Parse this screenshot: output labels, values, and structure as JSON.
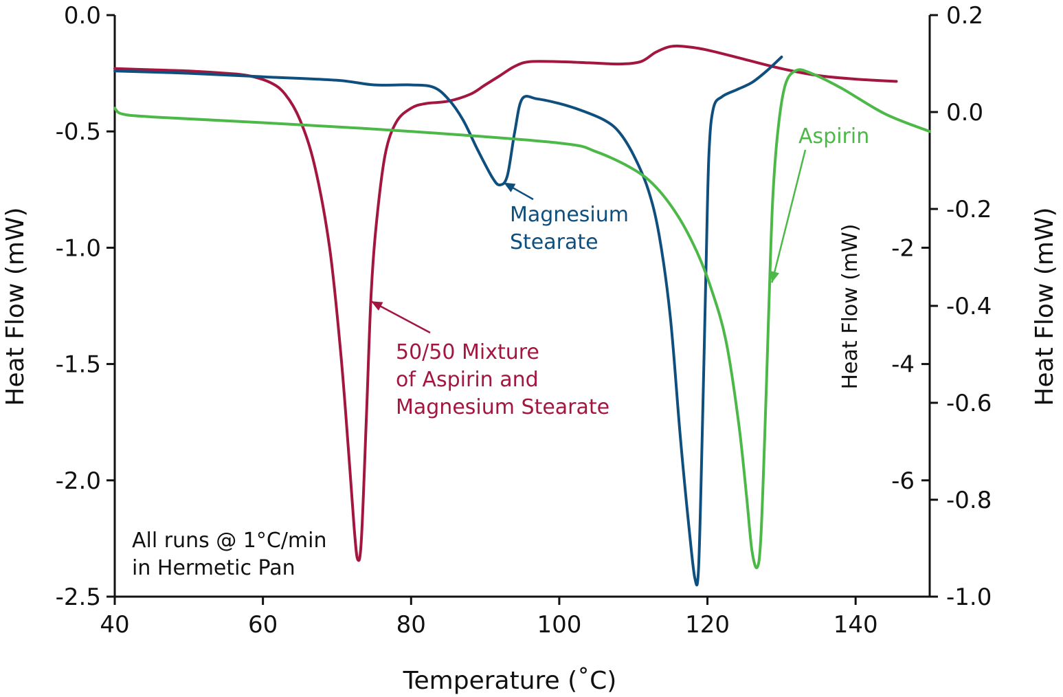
{
  "chart_data": {
    "type": "line",
    "xlabel": "Temperature (˚C)",
    "xlim": [
      40,
      150
    ],
    "xticks": [
      40,
      60,
      80,
      100,
      120,
      140
    ],
    "axes": {
      "left": {
        "label": "Heat Flow (mW)",
        "lim": [
          -2.5,
          0.0
        ],
        "ticks": [
          "0.0",
          "-0.5",
          "-1.0",
          "-1.5",
          "-2.0",
          "-2.5"
        ]
      },
      "inner_right": {
        "label": "Heat Flow (mW)",
        "lim": [
          -8.0,
          2.0
        ],
        "ticks": [
          "-2",
          "-4",
          "-6"
        ]
      },
      "outer_right": {
        "label": "Heat Flow (mW)",
        "lim": [
          -1.0,
          0.2
        ],
        "ticks": [
          "0.2",
          "0.0",
          "-0.2",
          "-0.4",
          "-0.6",
          "-0.8",
          "-1.0"
        ]
      }
    },
    "series": [
      {
        "name": "50/50 Mixture of Aspirin and Magnesium Stearate",
        "axis": "left",
        "color": "#a3163f",
        "points": [
          [
            40,
            -0.23
          ],
          [
            45,
            -0.235
          ],
          [
            50,
            -0.24
          ],
          [
            55,
            -0.25
          ],
          [
            58,
            -0.26
          ],
          [
            61,
            -0.29
          ],
          [
            63,
            -0.34
          ],
          [
            65,
            -0.45
          ],
          [
            67,
            -0.65
          ],
          [
            69,
            -1.0
          ],
          [
            70.5,
            -1.45
          ],
          [
            71.5,
            -1.85
          ],
          [
            72.3,
            -2.2
          ],
          [
            72.8,
            -2.34
          ],
          [
            73.3,
            -2.25
          ],
          [
            74,
            -1.7
          ],
          [
            74.6,
            -1.2
          ],
          [
            75.3,
            -0.9
          ],
          [
            76.5,
            -0.6
          ],
          [
            78,
            -0.46
          ],
          [
            80,
            -0.4
          ],
          [
            82,
            -0.38
          ],
          [
            85,
            -0.37
          ],
          [
            88,
            -0.34
          ],
          [
            90,
            -0.3
          ],
          [
            92,
            -0.26
          ],
          [
            94,
            -0.22
          ],
          [
            96,
            -0.2
          ],
          [
            100,
            -0.2
          ],
          [
            104,
            -0.205
          ],
          [
            108,
            -0.21
          ],
          [
            111,
            -0.2
          ],
          [
            113,
            -0.16
          ],
          [
            115,
            -0.135
          ],
          [
            117,
            -0.135
          ],
          [
            120,
            -0.15
          ],
          [
            125,
            -0.19
          ],
          [
            130,
            -0.23
          ],
          [
            135,
            -0.26
          ],
          [
            140,
            -0.275
          ],
          [
            145.5,
            -0.285
          ]
        ]
      },
      {
        "name": "Magnesium Stearate",
        "axis": "left",
        "color": "#0f4f7e",
        "points": [
          [
            40,
            -0.24
          ],
          [
            50,
            -0.25
          ],
          [
            60,
            -0.265
          ],
          [
            70,
            -0.28
          ],
          [
            75,
            -0.3
          ],
          [
            80,
            -0.3
          ],
          [
            83,
            -0.31
          ],
          [
            85,
            -0.36
          ],
          [
            87,
            -0.45
          ],
          [
            89,
            -0.58
          ],
          [
            91,
            -0.7
          ],
          [
            92,
            -0.73
          ],
          [
            93,
            -0.69
          ],
          [
            94,
            -0.5
          ],
          [
            95,
            -0.36
          ],
          [
            97,
            -0.36
          ],
          [
            100,
            -0.38
          ],
          [
            103,
            -0.41
          ],
          [
            106,
            -0.45
          ],
          [
            108,
            -0.5
          ],
          [
            110,
            -0.6
          ],
          [
            112,
            -0.75
          ],
          [
            113.5,
            -0.95
          ],
          [
            115,
            -1.3
          ],
          [
            116.3,
            -1.8
          ],
          [
            117.5,
            -2.2
          ],
          [
            118.3,
            -2.42
          ],
          [
            118.8,
            -2.38
          ],
          [
            119.3,
            -1.8
          ],
          [
            119.8,
            -1.1
          ],
          [
            120.2,
            -0.6
          ],
          [
            120.8,
            -0.4
          ],
          [
            122,
            -0.35
          ],
          [
            124,
            -0.32
          ],
          [
            126,
            -0.29
          ],
          [
            128,
            -0.24
          ],
          [
            130,
            -0.18
          ]
        ]
      },
      {
        "name": "Aspirin",
        "axis": "inner_right",
        "color": "#4cb848",
        "points": [
          [
            40,
            0.4
          ],
          [
            41,
            0.3
          ],
          [
            45,
            0.25
          ],
          [
            60,
            0.15
          ],
          [
            80,
            0.0
          ],
          [
            100,
            -0.2
          ],
          [
            105,
            -0.35
          ],
          [
            110,
            -0.65
          ],
          [
            113,
            -0.95
          ],
          [
            116,
            -1.45
          ],
          [
            118.5,
            -2.05
          ],
          [
            120.5,
            -2.7
          ],
          [
            122.5,
            -3.6
          ],
          [
            124.2,
            -5.0
          ],
          [
            125.3,
            -6.3
          ],
          [
            126,
            -7.2
          ],
          [
            126.7,
            -7.5
          ],
          [
            127.2,
            -7.0
          ],
          [
            127.8,
            -5.0
          ],
          [
            128.3,
            -3.0
          ],
          [
            128.8,
            -1.2
          ],
          [
            129.5,
            0.0
          ],
          [
            130.5,
            0.8
          ],
          [
            132,
            1.05
          ],
          [
            134,
            1.0
          ],
          [
            138,
            0.75
          ],
          [
            144,
            0.3
          ],
          [
            150,
            0.0
          ]
        ]
      }
    ],
    "annotations": [
      {
        "lines": [
          "Magnesium",
          "Stearate"
        ],
        "series": "Magnesium Stearate",
        "arrow_to": [
          92.5,
          -0.72
        ]
      },
      {
        "lines": [
          "50/50 Mixture",
          "of Aspirin and",
          "Magnesium Stearate"
        ],
        "series": "50/50 Mixture of Aspirin and Magnesium Stearate",
        "arrow_to": [
          74.6,
          -1.23
        ]
      },
      {
        "lines": [
          "Aspirin"
        ],
        "series": "Aspirin",
        "arrow_to": [
          128.7,
          -2.6
        ]
      },
      {
        "lines": [
          "All runs @ 1°C/min",
          "in Hermetic Pan"
        ]
      }
    ]
  }
}
